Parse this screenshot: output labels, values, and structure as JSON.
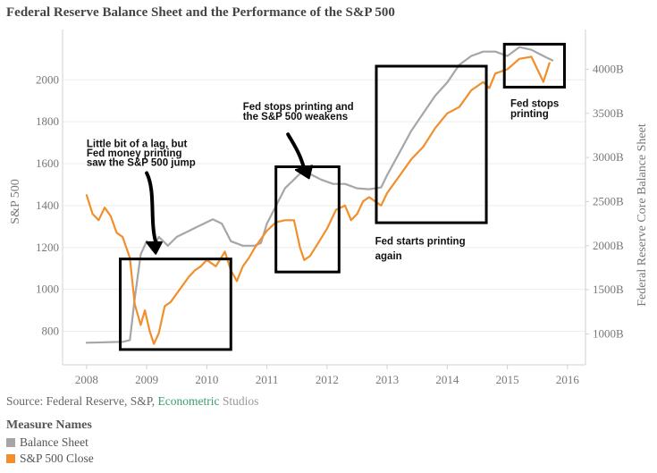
{
  "title": "Federal Reserve Balance Sheet and the Performance of the S&P 500",
  "source": {
    "prefix": "Source: Federal Reserve, S&P, ",
    "econometric": "Econometric",
    "studios": " Studios"
  },
  "legend": {
    "title": "Measure Names",
    "items": [
      {
        "label": "Balance Sheet",
        "color": "#a6a6a6"
      },
      {
        "label": "S&P 500 Close",
        "color": "#f28e2b"
      }
    ]
  },
  "chart_data": {
    "type": "line",
    "title": "Federal Reserve Balance Sheet and the Performance of the S&P 500",
    "xlabel": "",
    "ylabel": "S&P 500",
    "y2label": "Federal Reserve Core Balance Sheet",
    "xlim": [
      2007.6,
      2016.3
    ],
    "ylim": [
      640,
      2240
    ],
    "y2lim": [
      650,
      4450
    ],
    "x_ticks": [
      "2008",
      "2009",
      "2010",
      "2011",
      "2012",
      "2013",
      "2014",
      "2015",
      "2016"
    ],
    "y_ticks": [
      "800",
      "1000",
      "1200",
      "1400",
      "1600",
      "1800",
      "2000"
    ],
    "y2_ticks": [
      "1000B",
      "1500B",
      "2000B",
      "2500B",
      "3000B",
      "3500B",
      "4000B"
    ],
    "grid": true,
    "series": [
      {
        "name": "Balance Sheet",
        "axis": "right",
        "color": "#a6a6a6",
        "x": [
          2008.0,
          2008.3,
          2008.6,
          2008.72,
          2008.8,
          2008.9,
          2009.0,
          2009.1,
          2009.2,
          2009.35,
          2009.5,
          2009.65,
          2009.8,
          2009.95,
          2010.1,
          2010.25,
          2010.4,
          2010.6,
          2010.8,
          2010.9,
          2011.0,
          2011.15,
          2011.3,
          2011.45,
          2011.6,
          2011.75,
          2011.9,
          2012.1,
          2012.3,
          2012.5,
          2012.7,
          2012.9,
          2013.0,
          2013.2,
          2013.4,
          2013.6,
          2013.8,
          2014.0,
          2014.2,
          2014.4,
          2014.6,
          2014.8,
          2015.0,
          2015.2,
          2015.4,
          2015.6,
          2015.75
        ],
        "values": [
          900,
          905,
          910,
          930,
          1400,
          1900,
          2050,
          1950,
          2100,
          2000,
          2100,
          2150,
          2200,
          2250,
          2300,
          2250,
          2050,
          2000,
          2000,
          2030,
          2250,
          2450,
          2650,
          2750,
          2850,
          2800,
          2750,
          2700,
          2700,
          2650,
          2640,
          2660,
          2800,
          3050,
          3300,
          3500,
          3700,
          3850,
          4050,
          4150,
          4200,
          4200,
          4150,
          4250,
          4220,
          4150,
          4100
        ]
      },
      {
        "name": "S&P 500 Close",
        "axis": "left",
        "color": "#f28e2b",
        "x": [
          2008.0,
          2008.1,
          2008.2,
          2008.3,
          2008.4,
          2008.5,
          2008.6,
          2008.72,
          2008.8,
          2008.9,
          2008.97,
          2009.05,
          2009.12,
          2009.2,
          2009.3,
          2009.4,
          2009.5,
          2009.6,
          2009.7,
          2009.8,
          2009.9,
          2010.0,
          2010.15,
          2010.3,
          2010.4,
          2010.5,
          2010.6,
          2010.7,
          2010.8,
          2010.9,
          2011.0,
          2011.15,
          2011.3,
          2011.45,
          2011.55,
          2011.62,
          2011.72,
          2011.85,
          2012.0,
          2012.15,
          2012.3,
          2012.4,
          2012.5,
          2012.6,
          2012.7,
          2012.8,
          2012.9,
          2013.0,
          2013.2,
          2013.4,
          2013.6,
          2013.8,
          2014.0,
          2014.2,
          2014.4,
          2014.6,
          2014.7,
          2014.8,
          2015.0,
          2015.2,
          2015.4,
          2015.6,
          2015.7
        ],
        "values": [
          1450,
          1360,
          1330,
          1390,
          1350,
          1270,
          1250,
          1150,
          930,
          830,
          900,
          800,
          740,
          790,
          920,
          940,
          980,
          1020,
          1060,
          1090,
          1110,
          1140,
          1110,
          1180,
          1090,
          1040,
          1110,
          1150,
          1200,
          1240,
          1280,
          1320,
          1330,
          1330,
          1200,
          1140,
          1160,
          1220,
          1290,
          1380,
          1400,
          1330,
          1360,
          1420,
          1440,
          1420,
          1400,
          1460,
          1540,
          1620,
          1680,
          1770,
          1840,
          1870,
          1950,
          1990,
          1960,
          2030,
          2050,
          2100,
          2110,
          1990,
          2080
        ]
      }
    ],
    "annotations": [
      "Little bit of a lag, but",
      "Fed money printing",
      "saw the S&P 500 jump",
      "Fed stops printing and",
      "the S&P 500 weakens",
      "Fed starts printing",
      "again",
      "Fed stops",
      "printing"
    ]
  }
}
